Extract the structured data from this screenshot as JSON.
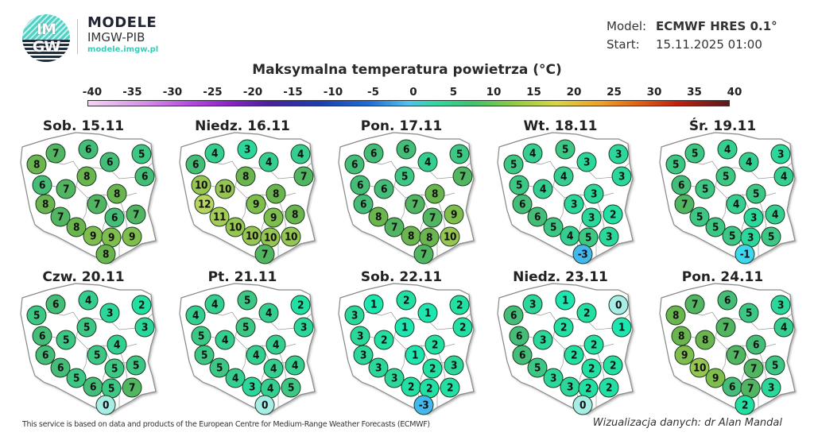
{
  "header": {
    "logo_text_top": "IM",
    "logo_text_bottom": "GW",
    "brand_title": "MODELE",
    "brand_subtitle": "IMGW-PIB",
    "brand_url": "modele.imgw.pl",
    "model_label": "Model:",
    "model_value": "ECMWF HRES 0.1°",
    "start_label": "Start:",
    "start_value": "15.11.2025 01:00"
  },
  "footer": {
    "source_note": "This service is based on data and products of the European Centre for Medium-Range Weather Forecasts (ECMWF)",
    "credit": "Wizualizacja danych: dr Alan Mandal"
  },
  "colors": {
    "cold_-3": "#44b8ee",
    "cold_-1": "#3fd7f0",
    "zero": "#a8ece6",
    "t1": "#1de6b0",
    "t2": "#22dfa4",
    "t3": "#2bd79a",
    "t4": "#34cf90",
    "t5": "#3cc784",
    "t6": "#44bd78",
    "t7": "#52b562",
    "t8": "#6bb54e",
    "t9": "#7fbd4c",
    "t10": "#96c552",
    "t11": "#a6cc58",
    "t12": "#b8d45e"
  },
  "chart_data": {
    "type": "map-station-values",
    "title": "Maksymalna temperatura powietrza (°C)",
    "colorbar": {
      "ticks": [
        -40,
        -35,
        -30,
        -25,
        -20,
        -15,
        -10,
        -5,
        0,
        5,
        10,
        15,
        20,
        25,
        30,
        35,
        40
      ],
      "range": [
        -40,
        40
      ],
      "unit": "°C"
    },
    "station_positions": [
      [
        46,
        62
      ],
      [
        70,
        48
      ],
      [
        111,
        43
      ],
      [
        138,
        59
      ],
      [
        178,
        49
      ],
      [
        182,
        77
      ],
      [
        53,
        88
      ],
      [
        109,
        77
      ],
      [
        83,
        93
      ],
      [
        147,
        99
      ],
      [
        57,
        112
      ],
      [
        122,
        112
      ],
      [
        76,
        128
      ],
      [
        144,
        129
      ],
      [
        171,
        125
      ],
      [
        96,
        141
      ],
      [
        117,
        152
      ],
      [
        140,
        154
      ],
      [
        166,
        153
      ],
      [
        133,
        175
      ]
    ],
    "days": [
      {
        "label": "Sob. 15.11",
        "values": [
          8,
          7,
          6,
          6,
          5,
          6,
          6,
          8,
          7,
          8,
          8,
          7,
          7,
          6,
          7,
          8,
          9,
          9,
          9,
          8
        ]
      },
      {
        "label": "Niedz. 16.11",
        "values": [
          6,
          4,
          3,
          4,
          4,
          7,
          10,
          8,
          10,
          8,
          12,
          9,
          11,
          9,
          8,
          10,
          10,
          10,
          10,
          7
        ]
      },
      {
        "label": "Pon. 17.11",
        "values": [
          6,
          6,
          6,
          4,
          5,
          7,
          6,
          5,
          6,
          8,
          6,
          7,
          8,
          7,
          9,
          7,
          8,
          8,
          10,
          7
        ]
      },
      {
        "label": "Wt. 18.11",
        "values": [
          5,
          4,
          5,
          3,
          3,
          3,
          5,
          4,
          4,
          3,
          6,
          3,
          6,
          3,
          2,
          5,
          4,
          5,
          3,
          -3
        ]
      },
      {
        "label": "Śr. 19.11",
        "values": [
          5,
          5,
          4,
          4,
          3,
          4,
          6,
          5,
          5,
          5,
          7,
          4,
          5,
          3,
          4,
          5,
          5,
          3,
          5,
          -1
        ]
      },
      {
        "label": "Czw. 20.11",
        "values": [
          5,
          6,
          4,
          3,
          2,
          3,
          6,
          5,
          5,
          4,
          6,
          5,
          6,
          5,
          5,
          5,
          6,
          5,
          7,
          0
        ]
      },
      {
        "label": "Pt. 21.11",
        "values": [
          4,
          4,
          5,
          4,
          2,
          3,
          5,
          5,
          4,
          4,
          5,
          4,
          5,
          4,
          4,
          4,
          3,
          4,
          5,
          0
        ]
      },
      {
        "label": "Sob. 22.11",
        "values": [
          3,
          1,
          2,
          1,
          2,
          2,
          3,
          1,
          2,
          2,
          3,
          1,
          3,
          2,
          3,
          3,
          2,
          2,
          2,
          -3
        ]
      },
      {
        "label": "Niedz. 23.11",
        "values": [
          6,
          3,
          1,
          2,
          0,
          1,
          6,
          2,
          3,
          2,
          6,
          2,
          5,
          2,
          2,
          3,
          3,
          2,
          2,
          0
        ]
      },
      {
        "label": "Pon. 24.11",
        "values": [
          8,
          7,
          6,
          5,
          3,
          4,
          8,
          7,
          8,
          6,
          9,
          7,
          10,
          7,
          5,
          9,
          6,
          7,
          3,
          2
        ]
      }
    ]
  }
}
